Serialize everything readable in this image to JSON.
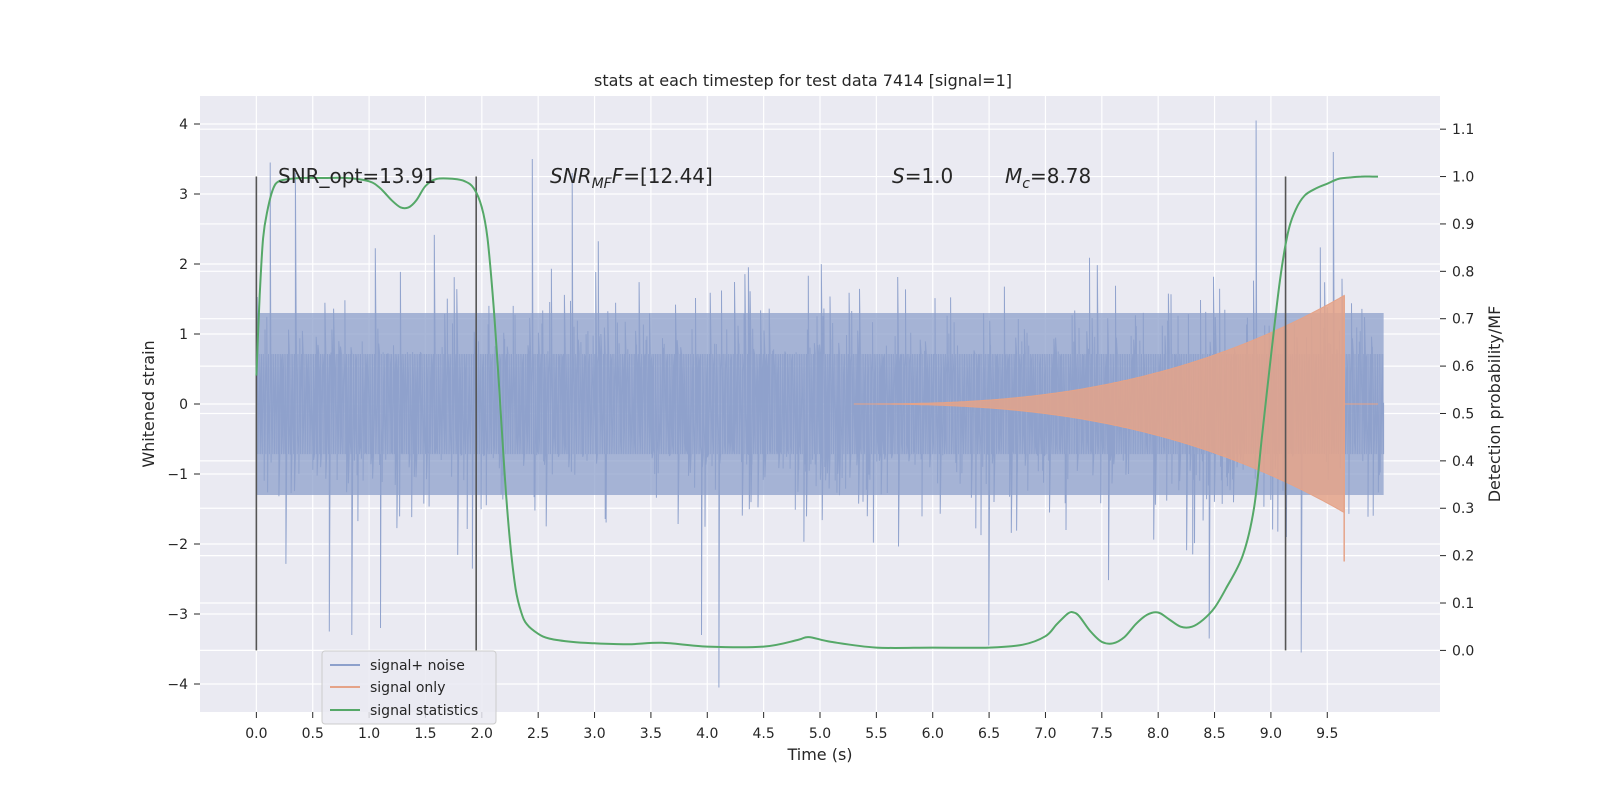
{
  "chart_data": {
    "type": "line",
    "title": "stats at each timestep for test data 7414 [signal=1]",
    "xlabel": "Time (s)",
    "ylabel": "Whitened strain",
    "ylabel_right": "Detection probability/MF",
    "xlim": [
      -0.5,
      10.5
    ],
    "ylim": [
      -4.4,
      4.4
    ],
    "ylim_right": [
      -0.13,
      1.17
    ],
    "x_ticks": [
      "0.0",
      "0.5",
      "1.0",
      "1.5",
      "2.0",
      "2.5",
      "3.0",
      "3.5",
      "4.0",
      "4.5",
      "5.0",
      "5.5",
      "6.0",
      "6.5",
      "7.0",
      "7.5",
      "8.0",
      "8.5",
      "9.0",
      "9.5"
    ],
    "y_ticks": [
      "4",
      "3",
      "2",
      "1",
      "0",
      "−1",
      "−2",
      "−3",
      "−4"
    ],
    "y_ticks_right": [
      "1.1",
      "1.0",
      "0.9",
      "0.8",
      "0.7",
      "0.6",
      "0.5",
      "0.4",
      "0.3",
      "0.2",
      "0.1",
      "0.0"
    ],
    "grid": true,
    "legend_position": "lower-left",
    "annotations": {
      "snr_opt": "SNR_opt=13.91",
      "snr_mf_main": "SNR",
      "snr_mf_sub": "MF",
      "snr_mf_tail": "=[12.44]",
      "s_main": "S",
      "s_tail": "=1.0",
      "mc_main": "M",
      "mc_sub": "c",
      "mc_tail": "=8.78"
    },
    "vlines_x": [
      0.0,
      1.95,
      9.13
    ],
    "vline_ylim_right": [
      0.0,
      1.0
    ],
    "series": [
      {
        "name": "signal+ noise",
        "color": "#8da0cb",
        "kind": "noise",
        "duration": 10.0,
        "typical_amplitude": 1.3,
        "extreme_values": [
          {
            "x": 0.12,
            "y": 3.45
          },
          {
            "x": 0.35,
            "y": 3.3
          },
          {
            "x": 2.45,
            "y": 3.5
          },
          {
            "x": 2.8,
            "y": 3.3
          },
          {
            "x": 8.87,
            "y": 4.05
          },
          {
            "x": 9.55,
            "y": 3.6
          },
          {
            "x": 9.27,
            "y": -3.55
          },
          {
            "x": 4.1,
            "y": -4.05
          },
          {
            "x": 3.95,
            "y": -3.3
          },
          {
            "x": 6.5,
            "y": -3.45
          },
          {
            "x": 0.65,
            "y": -3.25
          },
          {
            "x": 1.1,
            "y": -3.2
          },
          {
            "x": 0.85,
            "y": -3.3
          },
          {
            "x": 8.45,
            "y": -3.35
          }
        ]
      },
      {
        "name": "signal only",
        "color": "#e5a388",
        "kind": "chirp",
        "t_start": 5.3,
        "t_merge": 9.65,
        "peak_amplitude": 1.55,
        "t_end": 9.95
      },
      {
        "name": "signal statistics",
        "color": "#55a868",
        "axis": "right",
        "x": [
          0.0,
          0.03,
          0.06,
          0.1,
          0.15,
          0.2,
          0.3,
          0.4,
          0.6,
          0.8,
          1.0,
          1.1,
          1.2,
          1.28,
          1.35,
          1.42,
          1.5,
          1.6,
          1.75,
          1.85,
          1.93,
          2.0,
          2.05,
          2.1,
          2.15,
          2.2,
          2.25,
          2.3,
          2.35,
          2.4,
          2.5,
          2.6,
          2.8,
          3.0,
          3.3,
          3.6,
          4.0,
          4.5,
          4.8,
          4.9,
          5.1,
          5.5,
          6.0,
          6.5,
          6.8,
          7.0,
          7.1,
          7.2,
          7.25,
          7.3,
          7.4,
          7.5,
          7.6,
          7.7,
          7.8,
          7.9,
          8.0,
          8.1,
          8.2,
          8.3,
          8.4,
          8.5,
          8.6,
          8.75,
          8.85,
          8.92,
          9.0,
          9.08,
          9.15,
          9.22,
          9.3,
          9.4,
          9.5,
          9.6,
          9.7,
          9.8,
          9.9,
          9.95
        ],
        "values": [
          0.58,
          0.75,
          0.87,
          0.93,
          0.975,
          0.99,
          0.995,
          0.997,
          0.997,
          0.997,
          0.99,
          0.975,
          0.95,
          0.935,
          0.935,
          0.95,
          0.98,
          0.995,
          0.995,
          0.99,
          0.975,
          0.935,
          0.87,
          0.74,
          0.57,
          0.38,
          0.23,
          0.13,
          0.08,
          0.055,
          0.035,
          0.025,
          0.018,
          0.015,
          0.013,
          0.016,
          0.008,
          0.008,
          0.022,
          0.028,
          0.018,
          0.006,
          0.006,
          0.006,
          0.012,
          0.03,
          0.055,
          0.078,
          0.08,
          0.072,
          0.04,
          0.018,
          0.015,
          0.028,
          0.055,
          0.075,
          0.08,
          0.065,
          0.05,
          0.05,
          0.065,
          0.09,
          0.13,
          0.2,
          0.3,
          0.45,
          0.62,
          0.78,
          0.88,
          0.93,
          0.96,
          0.975,
          0.985,
          0.995,
          0.998,
          1.0,
          1.0,
          1.0
        ]
      }
    ]
  }
}
